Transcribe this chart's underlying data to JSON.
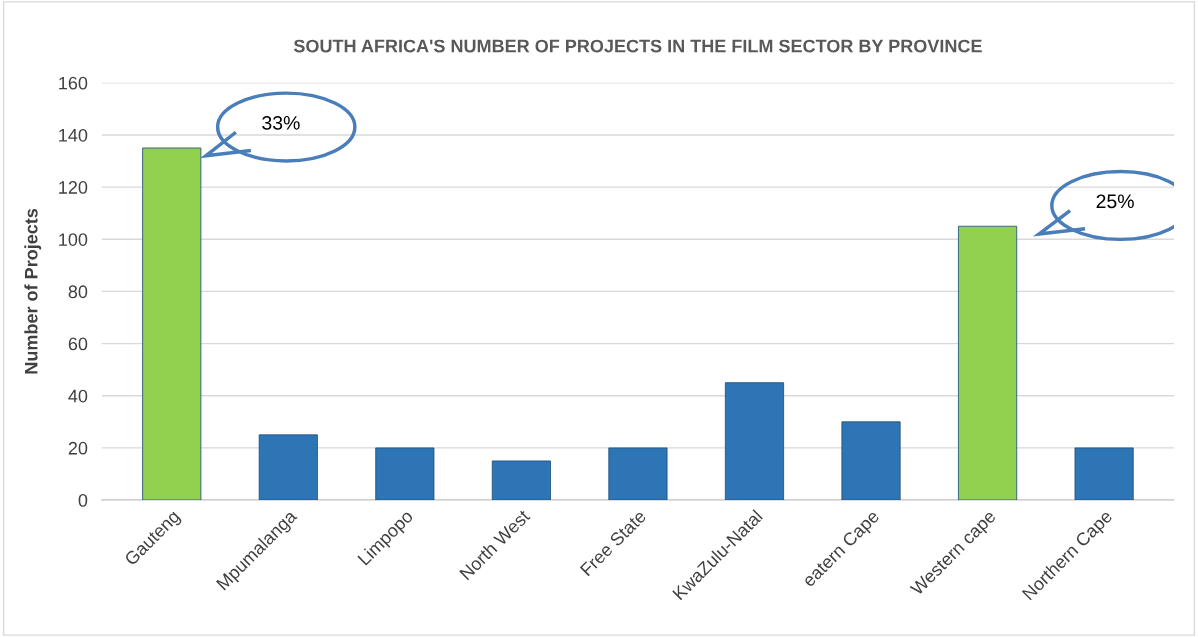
{
  "chart_data": {
    "type": "bar",
    "title": "SOUTH AFRICA'S NUMBER OF PROJECTS IN THE FILM SECTOR BY PROVINCE",
    "ylabel": "Number of Projects",
    "categories": [
      "Gauteng",
      "Mpumalanga",
      "Limpopo",
      "North West",
      "Free State",
      "KwaZulu-Natal",
      "eatern Cape",
      "Western cape",
      "Northern Cape"
    ],
    "values": [
      135,
      25,
      20,
      15,
      20,
      45,
      30,
      105,
      20
    ],
    "colors": [
      "#92d050",
      "#2e75b6",
      "#2e75b6",
      "#2e75b6",
      "#2e75b6",
      "#2e75b6",
      "#2e75b6",
      "#92d050",
      "#2e75b6"
    ],
    "ylim": [
      0,
      160
    ],
    "yticks": [
      0,
      20,
      40,
      60,
      80,
      100,
      120,
      140,
      160
    ],
    "grid": "y",
    "annotations": [
      "33%",
      "25%"
    ]
  }
}
